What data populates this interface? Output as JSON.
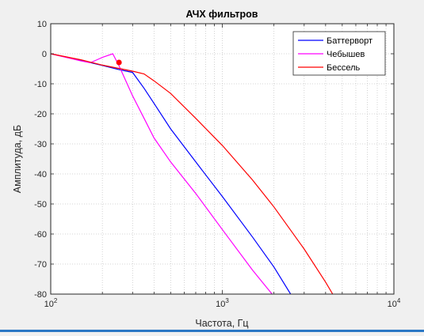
{
  "chart_data": {
    "type": "line",
    "title": "АЧХ фильтров",
    "xlabel": "Частота, Гц",
    "ylabel": "Амплитуда, дБ",
    "xscale": "log",
    "xlim": [
      100,
      10000
    ],
    "ylim": [
      -80,
      10
    ],
    "grid": true,
    "legend_position": "top-right",
    "x_ticks": [
      {
        "value": 100,
        "base": "10",
        "exp": "2"
      },
      {
        "value": 1000,
        "base": "10",
        "exp": "3"
      },
      {
        "value": 10000,
        "base": "10",
        "exp": "4"
      }
    ],
    "y_ticks": [
      "10",
      "0",
      "-10",
      "-20",
      "-30",
      "-40",
      "-50",
      "-60",
      "-70",
      "-80"
    ],
    "series": [
      {
        "name": "Баттерворт",
        "color": "#0000ff",
        "points": [
          [
            100,
            0
          ],
          [
            150,
            -2.2
          ],
          [
            200,
            -3.9
          ],
          [
            250,
            -5.3
          ],
          [
            300,
            -6.2
          ],
          [
            350,
            -11.5
          ],
          [
            400,
            -16.5
          ],
          [
            500,
            -25
          ],
          [
            700,
            -36
          ],
          [
            1000,
            -47.5
          ],
          [
            1500,
            -61
          ],
          [
            2000,
            -71
          ],
          [
            2500,
            -80
          ]
        ]
      },
      {
        "name": "Чебышев",
        "color": "#ff00ff",
        "points": [
          [
            100,
            0
          ],
          [
            150,
            -2.4
          ],
          [
            170,
            -3
          ],
          [
            200,
            -1.2
          ],
          [
            230,
            0
          ],
          [
            250,
            -4
          ],
          [
            300,
            -14
          ],
          [
            350,
            -21.5
          ],
          [
            400,
            -28
          ],
          [
            500,
            -36
          ],
          [
            700,
            -46.5
          ],
          [
            1000,
            -58.5
          ],
          [
            1500,
            -72
          ],
          [
            1950,
            -80
          ]
        ]
      },
      {
        "name": "Бессель",
        "color": "#ff0000",
        "points": [
          [
            100,
            0
          ],
          [
            150,
            -2
          ],
          [
            200,
            -3.8
          ],
          [
            300,
            -5.8
          ],
          [
            350,
            -6.7
          ],
          [
            400,
            -9
          ],
          [
            500,
            -13.2
          ],
          [
            700,
            -21.5
          ],
          [
            1000,
            -30.5
          ],
          [
            1500,
            -42
          ],
          [
            2000,
            -51
          ],
          [
            3000,
            -65
          ],
          [
            4000,
            -76
          ],
          [
            4400,
            -80
          ]
        ]
      }
    ],
    "marker": {
      "x": 250,
      "y": -2.9,
      "color": "#ff0000"
    }
  }
}
